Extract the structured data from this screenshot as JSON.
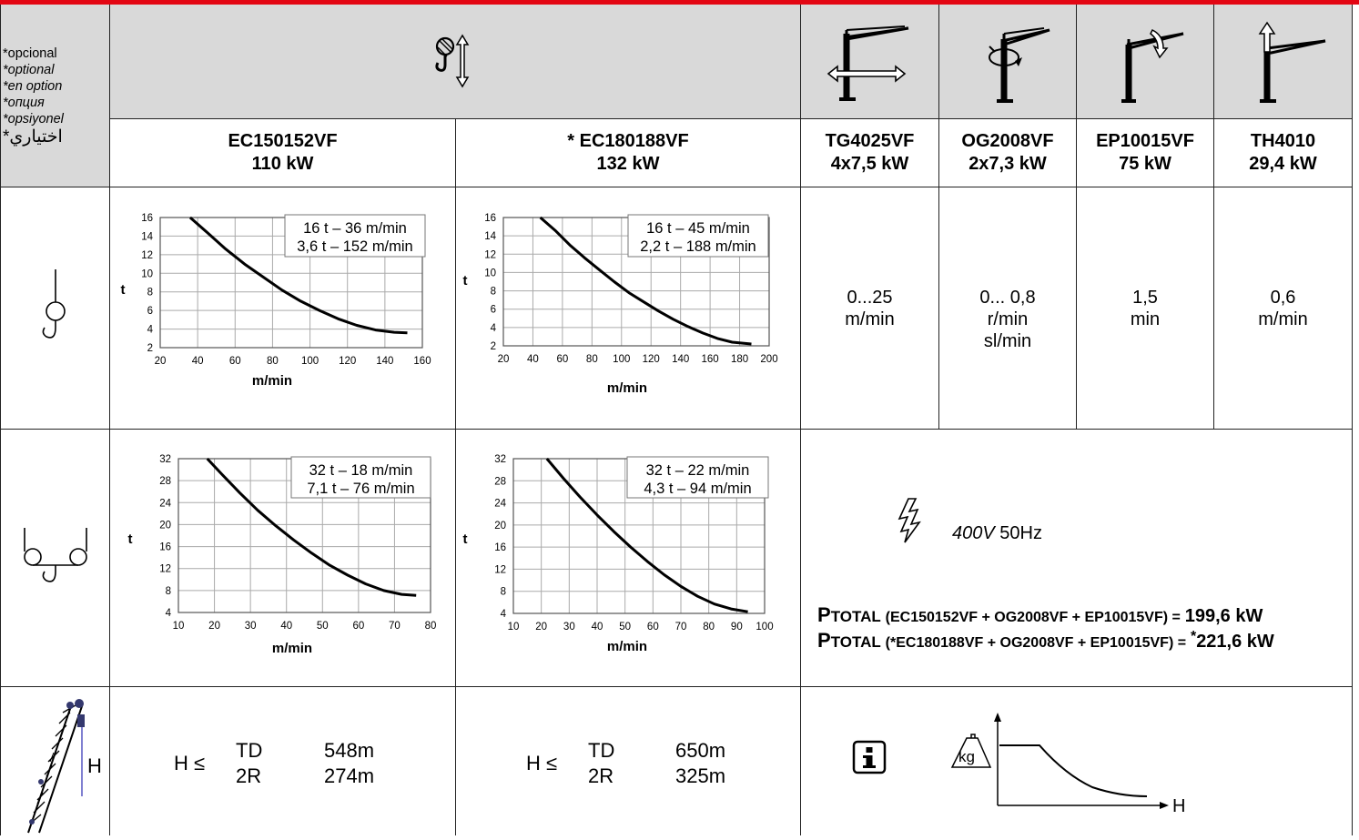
{
  "colors": {
    "accent_bar": "#e30613",
    "header_fill": "#d9d9d9",
    "grid": "#aaaaaa",
    "curve": "#000000"
  },
  "languages": [
    "*opcional",
    "*optional",
    "*en option",
    "*опция",
    "*opsiyonel",
    "اختياري*"
  ],
  "icons": {
    "header_hoist": "hook-up-down-arrow-icon",
    "header_trolley": "crane-trolley-horizontal-icon",
    "header_slewing": "crane-slewing-rotation-icon",
    "header_luffing": "crane-jib-luffing-icon",
    "header_travel": "crane-vertical-arrow-icon",
    "row_single_hook": "single-fall-hook-icon",
    "row_double_hook": "double-fall-hook-icon",
    "row_height": "crane-height-icon",
    "electric": "lightning-bolt-icon",
    "info": "info-icon",
    "load_height": "weight-vs-height-diagram-icon"
  },
  "motors": [
    {
      "name": "EC150152VF",
      "power": "110 kW"
    },
    {
      "name": "* EC180188VF",
      "power": "132 kW"
    },
    {
      "name": "TG4025VF",
      "power": "4x7,5 kW"
    },
    {
      "name": "OG2008VF",
      "power": "2x7,3 kW"
    },
    {
      "name": "EP10015VF",
      "power": "75 kW"
    },
    {
      "name": "TH4010",
      "power": "29,4 kW"
    }
  ],
  "speeds": [
    {
      "lines": [
        "0...25",
        "m/min"
      ]
    },
    {
      "lines": [
        "0... 0,8",
        "r/min",
        "sl/min"
      ]
    },
    {
      "lines": [
        "1,5",
        "min"
      ]
    },
    {
      "lines": [
        "0,6",
        "m/min"
      ]
    }
  ],
  "power_supply": {
    "voltage": "400V",
    "frequency": "50Hz"
  },
  "ptotal": [
    {
      "p": "P",
      "label": "TOTAL",
      "formula": "(EC150152VF + OG2008VF + EP10015VF) =",
      "star": "",
      "value": "199,6 kW"
    },
    {
      "p": "P",
      "label": "TOTAL",
      "formula": "(*EC180188VF + OG2008VF + EP10015VF) =",
      "star": "*",
      "value": "221,6 kW"
    }
  ],
  "height": [
    {
      "prefix": "H ≤",
      "labels": [
        "TD",
        "2R"
      ],
      "values": [
        "548m",
        "274m"
      ]
    },
    {
      "prefix": "H ≤",
      "labels": [
        "TD",
        "2R"
      ],
      "values": [
        "650m",
        "325m"
      ]
    }
  ],
  "height_icon_label": "H",
  "load_diagram": {
    "weight_label": "kg",
    "axis_label": "H"
  },
  "chart_data": [
    {
      "type": "line",
      "xlabel": "m/min",
      "ylabel": "t",
      "xlim": [
        20,
        160
      ],
      "ylim": [
        2,
        16
      ],
      "xticks": [
        20,
        40,
        60,
        80,
        100,
        120,
        140,
        160
      ],
      "yticks": [
        2,
        4,
        6,
        8,
        10,
        12,
        14,
        16
      ],
      "legend": [
        "16 t – 36 m/min",
        "3,6 t – 152 m/min"
      ],
      "grid": true,
      "series": [
        {
          "x": [
            36,
            45,
            55,
            65,
            75,
            85,
            95,
            105,
            115,
            125,
            135,
            145,
            152
          ],
          "y": [
            16,
            14.4,
            12.6,
            11,
            9.6,
            8.2,
            7,
            6,
            5.1,
            4.4,
            3.9,
            3.65,
            3.6
          ]
        }
      ]
    },
    {
      "type": "line",
      "xlabel": "m/min",
      "ylabel": "t",
      "xlim": [
        20,
        200
      ],
      "ylim": [
        2,
        16
      ],
      "xticks": [
        20,
        40,
        60,
        80,
        100,
        120,
        140,
        160,
        180,
        200
      ],
      "yticks": [
        2,
        4,
        6,
        8,
        10,
        12,
        14,
        16
      ],
      "legend": [
        "16 t – 45 m/min",
        "2,2 t – 188 m/min"
      ],
      "grid": true,
      "series": [
        {
          "x": [
            45,
            55,
            65,
            75,
            85,
            95,
            105,
            115,
            125,
            135,
            145,
            155,
            165,
            175,
            188
          ],
          "y": [
            16,
            14.6,
            13,
            11.6,
            10.3,
            9,
            7.8,
            6.8,
            5.8,
            4.9,
            4.1,
            3.4,
            2.8,
            2.4,
            2.2
          ]
        }
      ]
    },
    {
      "type": "line",
      "xlabel": "m/min",
      "ylabel": "t",
      "xlim": [
        10,
        80
      ],
      "ylim": [
        4,
        32
      ],
      "xticks": [
        10,
        20,
        30,
        40,
        50,
        60,
        70,
        80
      ],
      "yticks": [
        4,
        8,
        12,
        16,
        20,
        24,
        28,
        32
      ],
      "legend": [
        "32 t – 18 m/min",
        "7,1 t – 76 m/min"
      ],
      "grid": true,
      "series": [
        {
          "x": [
            18,
            22,
            27,
            32,
            37,
            42,
            47,
            52,
            57,
            62,
            67,
            72,
            76
          ],
          "y": [
            32,
            29.2,
            25.8,
            22.6,
            19.8,
            17.2,
            14.8,
            12.6,
            10.8,
            9.2,
            8,
            7.3,
            7.1
          ]
        }
      ]
    },
    {
      "type": "line",
      "xlabel": "m/min",
      "ylabel": "t",
      "xlim": [
        10,
        100
      ],
      "ylim": [
        4,
        32
      ],
      "xticks": [
        10,
        20,
        30,
        40,
        50,
        60,
        70,
        80,
        90,
        100
      ],
      "yticks": [
        4,
        8,
        12,
        16,
        20,
        24,
        28,
        32
      ],
      "legend": [
        "32 t – 22 m/min",
        "4,3 t – 94 m/min"
      ],
      "grid": true,
      "series": [
        {
          "x": [
            22,
            28,
            34,
            40,
            46,
            52,
            58,
            64,
            70,
            76,
            82,
            88,
            94
          ],
          "y": [
            32,
            28.4,
            25,
            21.8,
            18.8,
            16,
            13.4,
            11,
            8.9,
            7.1,
            5.7,
            4.8,
            4.3
          ]
        }
      ]
    }
  ]
}
